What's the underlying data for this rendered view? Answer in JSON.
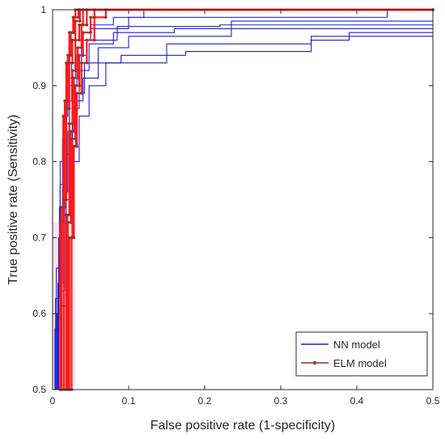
{
  "chart_data": {
    "type": "line",
    "title": "",
    "xlabel": "False positive rate (1-specificity)",
    "ylabel": "True positive rate (Sensitivity)",
    "xlim": [
      0,
      0.5
    ],
    "ylim": [
      0.5,
      1
    ],
    "xticks": [
      0,
      0.1,
      0.2,
      0.3,
      0.4,
      0.5
    ],
    "yticks": [
      0.5,
      0.6,
      0.7,
      0.8,
      0.9,
      1
    ],
    "xtick_labels": [
      "0",
      "0.1",
      "0.2",
      "0.3",
      "0.4",
      "0.5"
    ],
    "ytick_labels": [
      "0.5",
      "0.6",
      "0.7",
      "0.8",
      "0.9",
      "1"
    ],
    "grid": false,
    "legend_position": "bottom-right",
    "colors": {
      "nn": "#1f1fd6",
      "elm": "#ff1a1a",
      "elm_marker": "#8b3a2b",
      "band": "#f7c6dd"
    },
    "series": [
      {
        "name": "NN model",
        "group": "nn",
        "curves": [
          [
            [
              0,
              0.5
            ],
            [
              0.003,
              0.5
            ],
            [
              0.003,
              0.58
            ],
            [
              0.008,
              0.58
            ],
            [
              0.008,
              0.7
            ],
            [
              0.01,
              0.7
            ],
            [
              0.01,
              0.8
            ],
            [
              0.015,
              0.8
            ],
            [
              0.015,
              0.86
            ],
            [
              0.02,
              0.86
            ],
            [
              0.02,
              0.91
            ],
            [
              0.03,
              0.91
            ],
            [
              0.03,
              0.95
            ],
            [
              0.04,
              0.95
            ],
            [
              0.04,
              0.97
            ],
            [
              0.05,
              0.97
            ],
            [
              0.05,
              0.98
            ],
            [
              0.08,
              0.98
            ],
            [
              0.08,
              0.99
            ],
            [
              0.12,
              0.99
            ],
            [
              0.12,
              1
            ],
            [
              0.5,
              1
            ]
          ],
          [
            [
              0,
              0.5
            ],
            [
              0.004,
              0.5
            ],
            [
              0.004,
              0.62
            ],
            [
              0.009,
              0.62
            ],
            [
              0.009,
              0.74
            ],
            [
              0.013,
              0.74
            ],
            [
              0.013,
              0.83
            ],
            [
              0.018,
              0.83
            ],
            [
              0.018,
              0.88
            ],
            [
              0.025,
              0.88
            ],
            [
              0.025,
              0.93
            ],
            [
              0.038,
              0.93
            ],
            [
              0.038,
              0.96
            ],
            [
              0.05,
              0.96
            ],
            [
              0.05,
              0.975
            ],
            [
              0.1,
              0.975
            ],
            [
              0.1,
              0.99
            ],
            [
              0.44,
              0.99
            ],
            [
              0.44,
              1
            ],
            [
              0.5,
              1
            ]
          ],
          [
            [
              0,
              0.5
            ],
            [
              0.005,
              0.5
            ],
            [
              0.005,
              0.66
            ],
            [
              0.01,
              0.66
            ],
            [
              0.01,
              0.77
            ],
            [
              0.016,
              0.77
            ],
            [
              0.016,
              0.85
            ],
            [
              0.022,
              0.85
            ],
            [
              0.022,
              0.9
            ],
            [
              0.032,
              0.9
            ],
            [
              0.032,
              0.94
            ],
            [
              0.045,
              0.94
            ],
            [
              0.045,
              0.96
            ],
            [
              0.085,
              0.96
            ],
            [
              0.085,
              0.978
            ],
            [
              0.22,
              0.978
            ],
            [
              0.22,
              0.98
            ],
            [
              0.5,
              0.98
            ]
          ],
          [
            [
              0,
              0.5
            ],
            [
              0.006,
              0.5
            ],
            [
              0.006,
              0.6
            ],
            [
              0.012,
              0.6
            ],
            [
              0.012,
              0.72
            ],
            [
              0.018,
              0.72
            ],
            [
              0.018,
              0.81
            ],
            [
              0.026,
              0.81
            ],
            [
              0.026,
              0.87
            ],
            [
              0.035,
              0.87
            ],
            [
              0.035,
              0.92
            ],
            [
              0.048,
              0.92
            ],
            [
              0.048,
              0.955
            ],
            [
              0.08,
              0.955
            ],
            [
              0.08,
              0.97
            ],
            [
              0.16,
              0.97
            ],
            [
              0.16,
              0.975
            ],
            [
              0.5,
              0.975
            ]
          ],
          [
            [
              0,
              0.5
            ],
            [
              0.007,
              0.5
            ],
            [
              0.007,
              0.64
            ],
            [
              0.014,
              0.64
            ],
            [
              0.014,
              0.76
            ],
            [
              0.02,
              0.76
            ],
            [
              0.02,
              0.84
            ],
            [
              0.03,
              0.84
            ],
            [
              0.03,
              0.89
            ],
            [
              0.042,
              0.89
            ],
            [
              0.042,
              0.93
            ],
            [
              0.06,
              0.93
            ],
            [
              0.06,
              0.95
            ],
            [
              0.1,
              0.95
            ],
            [
              0.1,
              0.965
            ],
            [
              0.235,
              0.965
            ],
            [
              0.235,
              0.985
            ],
            [
              0.5,
              0.985
            ]
          ],
          [
            [
              0,
              0.5
            ],
            [
              0.008,
              0.5
            ],
            [
              0.008,
              0.63
            ],
            [
              0.016,
              0.63
            ],
            [
              0.016,
              0.75
            ],
            [
              0.022,
              0.75
            ],
            [
              0.022,
              0.82
            ],
            [
              0.03,
              0.82
            ],
            [
              0.03,
              0.88
            ],
            [
              0.04,
              0.88
            ],
            [
              0.04,
              0.91
            ],
            [
              0.06,
              0.91
            ],
            [
              0.06,
              0.93
            ],
            [
              0.15,
              0.93
            ],
            [
              0.15,
              0.955
            ],
            [
              0.34,
              0.955
            ],
            [
              0.34,
              0.965
            ],
            [
              0.5,
              0.965
            ]
          ],
          [
            [
              0,
              0.5
            ],
            [
              0.01,
              0.5
            ],
            [
              0.01,
              0.61
            ],
            [
              0.02,
              0.61
            ],
            [
              0.02,
              0.73
            ],
            [
              0.025,
              0.73
            ],
            [
              0.025,
              0.8
            ],
            [
              0.035,
              0.8
            ],
            [
              0.035,
              0.86
            ],
            [
              0.048,
              0.86
            ],
            [
              0.048,
              0.9
            ],
            [
              0.07,
              0.9
            ],
            [
              0.07,
              0.93
            ],
            [
              0.09,
              0.93
            ],
            [
              0.09,
              0.94
            ],
            [
              0.175,
              0.94
            ],
            [
              0.175,
              0.945
            ],
            [
              0.34,
              0.945
            ],
            [
              0.34,
              0.96
            ],
            [
              0.39,
              0.96
            ],
            [
              0.39,
              0.97
            ],
            [
              0.5,
              0.97
            ]
          ]
        ]
      },
      {
        "name": "ELM model",
        "group": "elm",
        "curves": [
          [
            [
              0.01,
              0.5
            ],
            [
              0.01,
              0.72
            ],
            [
              0.014,
              0.72
            ],
            [
              0.014,
              0.86
            ],
            [
              0.018,
              0.86
            ],
            [
              0.018,
              0.93
            ],
            [
              0.022,
              0.93
            ],
            [
              0.022,
              0.97
            ],
            [
              0.027,
              0.97
            ],
            [
              0.027,
              0.99
            ],
            [
              0.03,
              0.99
            ],
            [
              0.03,
              1
            ],
            [
              0.5,
              1
            ]
          ],
          [
            [
              0.012,
              0.5
            ],
            [
              0.012,
              0.74
            ],
            [
              0.016,
              0.74
            ],
            [
              0.016,
              0.88
            ],
            [
              0.02,
              0.88
            ],
            [
              0.02,
              0.94
            ],
            [
              0.024,
              0.94
            ],
            [
              0.024,
              0.97
            ],
            [
              0.028,
              0.97
            ],
            [
              0.028,
              0.99
            ],
            [
              0.034,
              0.99
            ],
            [
              0.034,
              1
            ],
            [
              0.5,
              1
            ]
          ],
          [
            [
              0.015,
              0.5
            ],
            [
              0.015,
              0.75
            ],
            [
              0.018,
              0.75
            ],
            [
              0.018,
              0.87
            ],
            [
              0.022,
              0.87
            ],
            [
              0.022,
              0.93
            ],
            [
              0.026,
              0.93
            ],
            [
              0.026,
              0.96
            ],
            [
              0.03,
              0.96
            ],
            [
              0.03,
              0.985
            ],
            [
              0.036,
              0.985
            ],
            [
              0.036,
              1
            ],
            [
              0.5,
              1
            ]
          ],
          [
            [
              0.018,
              0.5
            ],
            [
              0.018,
              0.73
            ],
            [
              0.022,
              0.73
            ],
            [
              0.022,
              0.85
            ],
            [
              0.026,
              0.85
            ],
            [
              0.026,
              0.92
            ],
            [
              0.03,
              0.92
            ],
            [
              0.03,
              0.96
            ],
            [
              0.035,
              0.96
            ],
            [
              0.035,
              0.98
            ],
            [
              0.04,
              0.98
            ],
            [
              0.04,
              1
            ],
            [
              0.5,
              1
            ]
          ],
          [
            [
              0.02,
              0.5
            ],
            [
              0.02,
              0.72
            ],
            [
              0.024,
              0.72
            ],
            [
              0.024,
              0.84
            ],
            [
              0.028,
              0.84
            ],
            [
              0.028,
              0.91
            ],
            [
              0.033,
              0.91
            ],
            [
              0.033,
              0.95
            ],
            [
              0.038,
              0.95
            ],
            [
              0.038,
              0.98
            ],
            [
              0.045,
              0.98
            ],
            [
              0.045,
              1
            ],
            [
              0.5,
              1
            ]
          ],
          [
            [
              0.022,
              0.5
            ],
            [
              0.022,
              0.7
            ],
            [
              0.026,
              0.7
            ],
            [
              0.026,
              0.83
            ],
            [
              0.03,
              0.83
            ],
            [
              0.03,
              0.9
            ],
            [
              0.035,
              0.9
            ],
            [
              0.035,
              0.94
            ],
            [
              0.04,
              0.94
            ],
            [
              0.04,
              0.97
            ],
            [
              0.05,
              0.97
            ],
            [
              0.05,
              0.99
            ],
            [
              0.055,
              0.99
            ],
            [
              0.055,
              1
            ],
            [
              0.5,
              1
            ]
          ],
          [
            [
              0.025,
              0.5
            ],
            [
              0.025,
              0.7
            ],
            [
              0.028,
              0.7
            ],
            [
              0.028,
              0.82
            ],
            [
              0.032,
              0.82
            ],
            [
              0.032,
              0.89
            ],
            [
              0.038,
              0.89
            ],
            [
              0.038,
              0.93
            ],
            [
              0.045,
              0.93
            ],
            [
              0.045,
              0.96
            ],
            [
              0.055,
              0.96
            ],
            [
              0.055,
              0.99
            ],
            [
              0.07,
              0.99
            ],
            [
              0.07,
              1
            ],
            [
              0.5,
              1
            ]
          ]
        ]
      }
    ],
    "highlight_band": {
      "x": [
        0,
        0.03
      ],
      "y": [
        0.5,
        0.72
      ]
    }
  }
}
